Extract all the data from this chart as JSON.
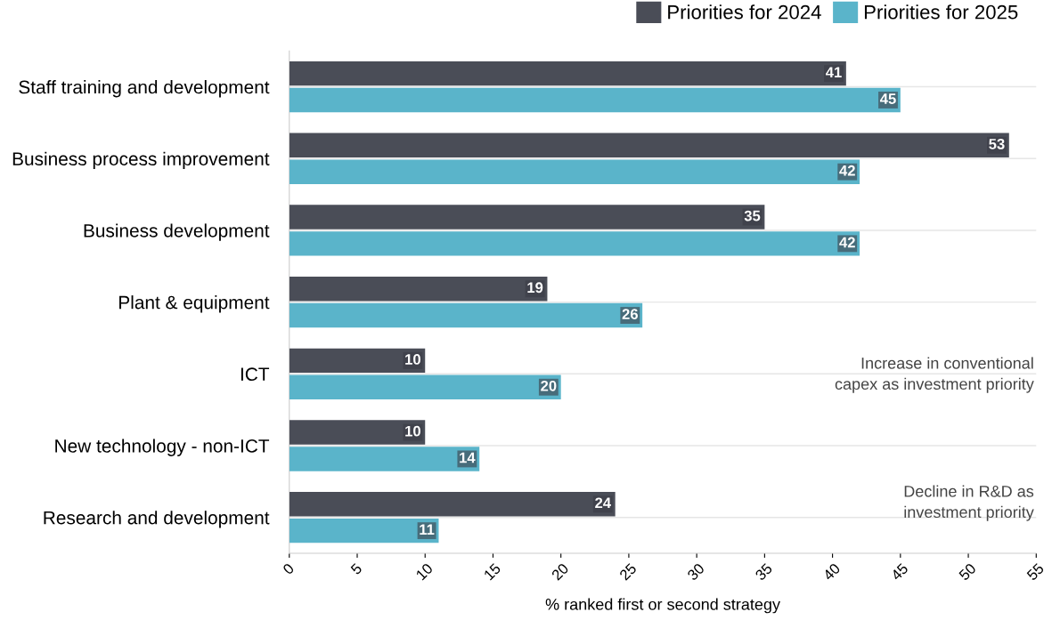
{
  "chart_data": {
    "type": "bar",
    "orientation": "horizontal",
    "xlabel": "% ranked first or second strategy",
    "categories": [
      "Staff training and development",
      "Business process improvement",
      "Business development",
      "Plant & equipment",
      "ICT",
      "New technology - non-ICT",
      "Research and development"
    ],
    "series": [
      {
        "name": "Priorities for 2024",
        "color": "#4a4d57",
        "values": [
          41,
          53,
          35,
          19,
          10,
          10,
          24
        ]
      },
      {
        "name": "Priorities for 2025",
        "color": "#5ab4ca",
        "values": [
          45,
          42,
          42,
          26,
          20,
          14,
          11
        ]
      }
    ],
    "xlim": [
      0,
      55
    ],
    "xticks": [
      0,
      5,
      10,
      15,
      20,
      25,
      30,
      35,
      40,
      45,
      50,
      55
    ],
    "grid": "y",
    "legend": "top right",
    "data_labels": true,
    "annotations": [
      "Increase in conventional\ncapex as investment priority",
      "Decline in R&D as\ninvestment priority"
    ]
  }
}
